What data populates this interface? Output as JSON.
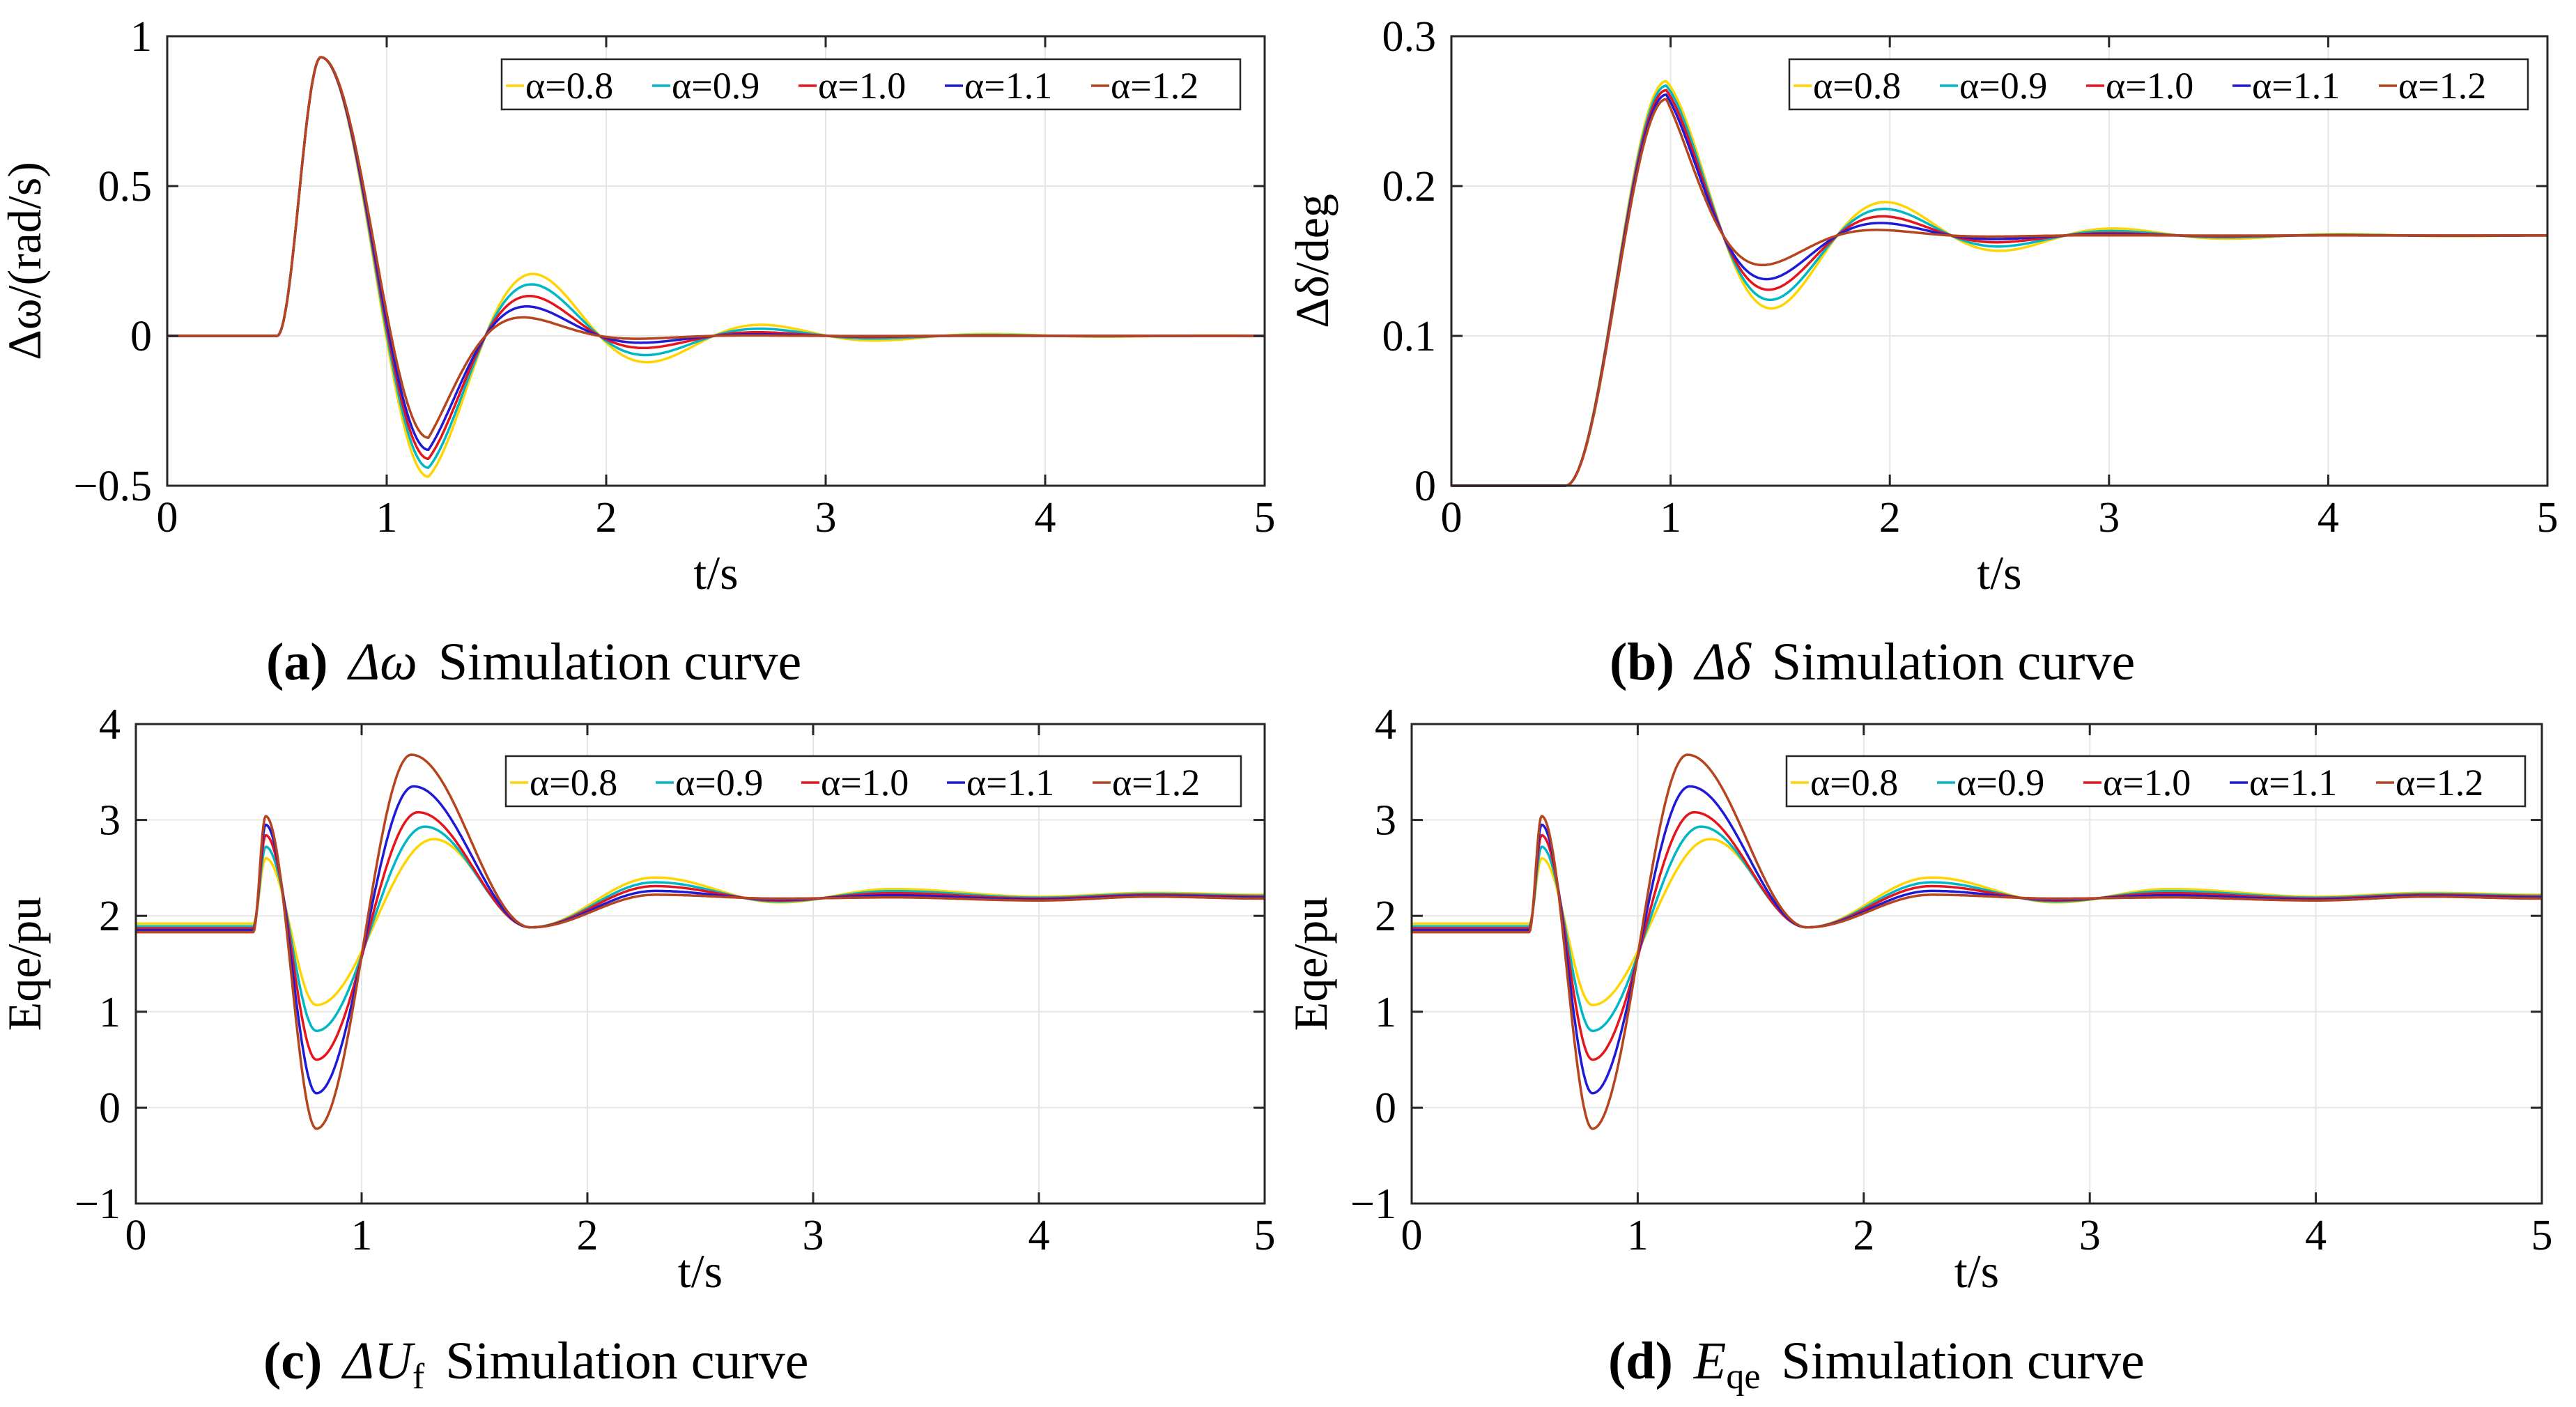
{
  "figure": {
    "colors": {
      "alpha_0_8": "#ffd400",
      "alpha_0_9": "#00b7c8",
      "alpha_1_0": "#e8141b",
      "alpha_1_1": "#1f1ad8",
      "alpha_1_2": "#b5441f",
      "grid": "#e6e6e6",
      "axis": "#262626"
    }
  },
  "chart_data": [
    {
      "id": "a",
      "type": "line",
      "caption": {
        "label": "(a)",
        "symbol": "Δω",
        "symbol_sub": "",
        "text": "Simulation curve"
      },
      "xlabel": "t/s",
      "ylabel": "Δω/(rad/s)",
      "xlim": [
        0,
        5
      ],
      "ylim": [
        -0.5,
        1
      ],
      "xticks": [
        0,
        1,
        2,
        3,
        4,
        5
      ],
      "xtick_labels": [
        "0",
        "1",
        "2",
        "3",
        "4",
        "5"
      ],
      "yticks": [
        -0.5,
        0,
        0.5,
        1
      ],
      "ytick_labels": [
        "−0.5",
        "0",
        "0.5",
        "1"
      ],
      "grid": true,
      "legend": "top-right",
      "model": {
        "kind": "impulse",
        "t0": 0.5,
        "base": 0,
        "final": 0,
        "peak": 0.93,
        "peak_t": 0.7,
        "trough": [
          -0.47,
          -0.44,
          -0.41,
          -0.38,
          -0.34
        ],
        "period": 1.04,
        "decay": [
          1.65,
          1.9,
          2.3,
          2.8,
          3.6
        ]
      },
      "series": [
        {
          "name": "α=0.8",
          "color_key": "alpha_0_8"
        },
        {
          "name": "α=0.9",
          "color_key": "alpha_0_9"
        },
        {
          "name": "α=1.0",
          "color_key": "alpha_1_0"
        },
        {
          "name": "α=1.1",
          "color_key": "alpha_1_1"
        },
        {
          "name": "α=1.2",
          "color_key": "alpha_1_2"
        }
      ]
    },
    {
      "id": "b",
      "type": "line",
      "caption": {
        "label": "(b)",
        "symbol": "Δδ",
        "symbol_sub": "",
        "text": "Simulation curve"
      },
      "xlabel": "t/s",
      "ylabel": "Δδ/deg",
      "xlim": [
        0,
        5
      ],
      "ylim": [
        0,
        0.3
      ],
      "xticks": [
        0,
        1,
        2,
        3,
        4,
        5
      ],
      "xtick_labels": [
        "0",
        "1",
        "2",
        "3",
        "4",
        "5"
      ],
      "yticks": [
        0,
        0.1,
        0.2,
        0.3
      ],
      "ytick_labels": [
        "0",
        "0.1",
        "0.2",
        "0.3"
      ],
      "grid": true,
      "legend": "top-right",
      "model": {
        "kind": "step",
        "t0": 0.52,
        "base": 0,
        "final": 0.167,
        "peak": [
          0.27,
          0.267,
          0.264,
          0.261,
          0.258
        ],
        "peak_t": 0.98,
        "period": 1.04,
        "decay": [
          1.5,
          1.7,
          2.0,
          2.4,
          3.2
        ]
      },
      "series": [
        {
          "name": "α=0.8",
          "color_key": "alpha_0_8"
        },
        {
          "name": "α=0.9",
          "color_key": "alpha_0_9"
        },
        {
          "name": "α=1.0",
          "color_key": "alpha_1_0"
        },
        {
          "name": "α=1.1",
          "color_key": "alpha_1_1"
        },
        {
          "name": "α=1.2",
          "color_key": "alpha_1_2"
        }
      ]
    },
    {
      "id": "c",
      "type": "line",
      "caption": {
        "label": "(c)",
        "symbol": "ΔU",
        "symbol_sub": "f",
        "text": "Simulation curve"
      },
      "xlabel": "t/s",
      "ylabel": "Eqe/pu",
      "xlim": [
        0,
        5
      ],
      "ylim": [
        -1,
        4
      ],
      "xticks": [
        0,
        1,
        2,
        3,
        4,
        5
      ],
      "xtick_labels": [
        "0",
        "1",
        "2",
        "3",
        "4",
        "5"
      ],
      "yticks": [
        -1,
        0,
        1,
        2,
        3,
        4
      ],
      "ytick_labels": [
        "−1",
        "0",
        "1",
        "2",
        "3",
        "4"
      ],
      "grid": true,
      "legend": "top-right",
      "model": {
        "kind": "excitation",
        "t0": 0.5,
        "base": [
          1.92,
          1.89,
          1.87,
          1.85,
          1.83
        ],
        "final": [
          2.22,
          2.21,
          2.2,
          2.19,
          2.18
        ],
        "spike": [
          2.6,
          2.72,
          2.84,
          2.95,
          3.04
        ],
        "trough": [
          1.07,
          0.8,
          0.5,
          0.15,
          -0.22
        ],
        "peak": [
          2.8,
          2.93,
          3.08,
          3.35,
          3.68
        ],
        "peak_t": [
          1.32,
          1.28,
          1.25,
          1.23,
          1.22
        ],
        "dip": 1.88,
        "bump": [
          2.4,
          2.35,
          2.31,
          2.26,
          2.22
        ]
      },
      "series": [
        {
          "name": "α=0.8",
          "color_key": "alpha_0_8"
        },
        {
          "name": "α=0.9",
          "color_key": "alpha_0_9"
        },
        {
          "name": "α=1.0",
          "color_key": "alpha_1_0"
        },
        {
          "name": "α=1.1",
          "color_key": "alpha_1_1"
        },
        {
          "name": "α=1.2",
          "color_key": "alpha_1_2"
        }
      ]
    },
    {
      "id": "d",
      "type": "line",
      "caption": {
        "label": "(d)",
        "symbol": "E",
        "symbol_sub": "qe",
        "text": "Simulation curve"
      },
      "xlabel": "t/s",
      "ylabel": "Eqe/pu",
      "xlim": [
        0,
        5
      ],
      "ylim": [
        -1,
        4
      ],
      "xticks": [
        0,
        1,
        2,
        3,
        4,
        5
      ],
      "xtick_labels": [
        "0",
        "1",
        "2",
        "3",
        "4",
        "5"
      ],
      "yticks": [
        -1,
        0,
        1,
        2,
        3,
        4
      ],
      "ytick_labels": [
        "−1",
        "0",
        "1",
        "2",
        "3",
        "4"
      ],
      "grid": true,
      "legend": "top-right",
      "model": {
        "kind": "excitation",
        "t0": 0.5,
        "base": [
          1.92,
          1.89,
          1.87,
          1.85,
          1.83
        ],
        "final": [
          2.22,
          2.21,
          2.2,
          2.19,
          2.18
        ],
        "spike": [
          2.6,
          2.72,
          2.84,
          2.95,
          3.04
        ],
        "trough": [
          1.07,
          0.8,
          0.5,
          0.15,
          -0.22
        ],
        "peak": [
          2.8,
          2.93,
          3.08,
          3.35,
          3.68
        ],
        "peak_t": [
          1.32,
          1.28,
          1.25,
          1.23,
          1.22
        ],
        "dip": 1.88,
        "bump": [
          2.4,
          2.35,
          2.31,
          2.26,
          2.22
        ]
      },
      "series": [
        {
          "name": "α=0.8",
          "color_key": "alpha_0_8"
        },
        {
          "name": "α=0.9",
          "color_key": "alpha_0_9"
        },
        {
          "name": "α=1.0",
          "color_key": "alpha_1_0"
        },
        {
          "name": "α=1.1",
          "color_key": "alpha_1_1"
        },
        {
          "name": "α=1.2",
          "color_key": "alpha_1_2"
        }
      ]
    }
  ]
}
